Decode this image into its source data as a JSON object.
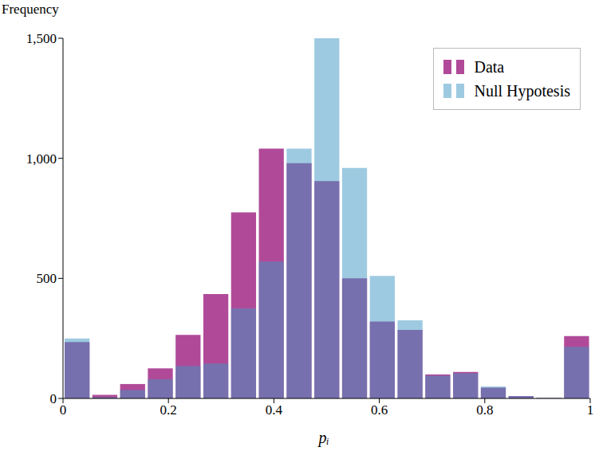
{
  "chart_data": {
    "type": "histogram",
    "x_label": "pᵢ",
    "y_label": "Frequency",
    "bins": [
      0,
      0.0526,
      0.1053,
      0.1579,
      0.2105,
      0.2632,
      0.3158,
      0.3684,
      0.4211,
      0.4737,
      0.5263,
      0.5789,
      0.6316,
      0.6842,
      0.7368,
      0.7895,
      0.8421,
      0.8947,
      0.9474,
      1
    ],
    "series": [
      {
        "name": "Data",
        "color": "#b04a98",
        "values": [
          235,
          15,
          60,
          125,
          265,
          435,
          775,
          1040,
          980,
          905,
          500,
          320,
          285,
          100,
          110,
          45,
          10,
          2,
          260
        ]
      },
      {
        "name": "Null Hypotesis",
        "color": "#3d95c3",
        "values": [
          250,
          5,
          35,
          80,
          135,
          145,
          375,
          570,
          1040,
          1500,
          960,
          510,
          325,
          95,
          105,
          50,
          10,
          2,
          215
        ]
      }
    ],
    "xlim": [
      0,
      1
    ],
    "xticks": [
      0,
      0.2,
      0.4,
      0.6,
      0.8,
      1
    ],
    "ylim": [
      0,
      1500
    ],
    "yticks": [
      0,
      500,
      {
        "value": 1000,
        "label": "1,000"
      },
      {
        "value": 1500,
        "label": "1,500"
      }
    ],
    "legend": "upper right",
    "grid": false
  }
}
